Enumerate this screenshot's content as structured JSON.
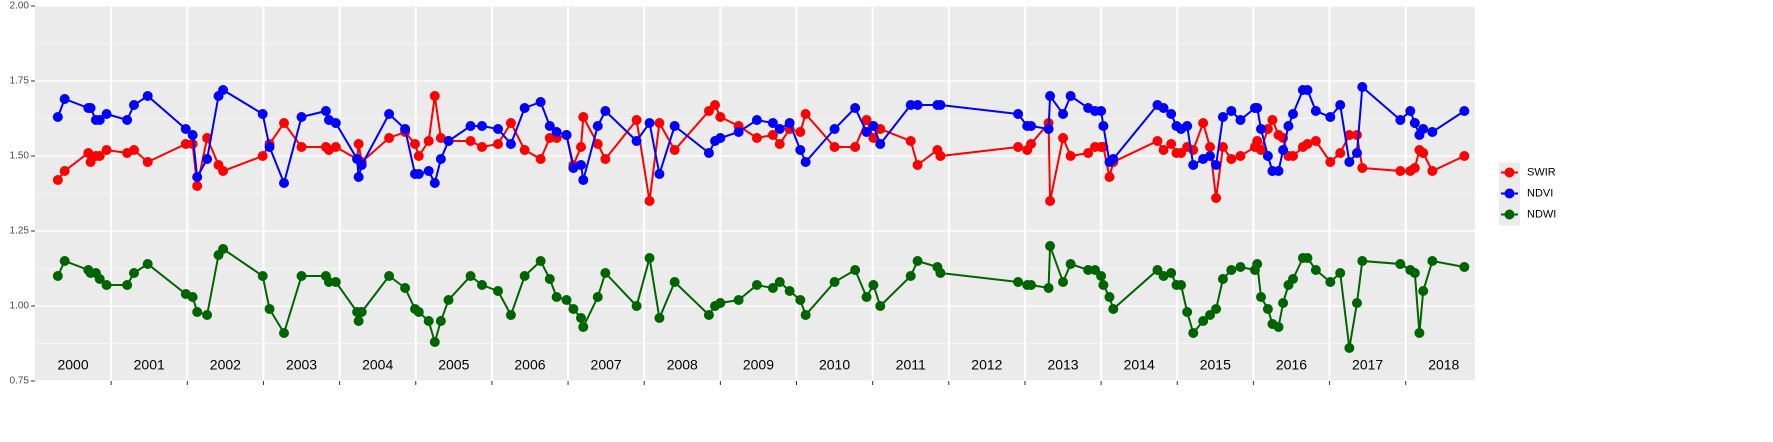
{
  "chart_data": {
    "type": "line",
    "x": [
      2000.3,
      2000.39,
      2000.7,
      2000.73,
      2000.8,
      2000.85,
      2000.94,
      2001.21,
      2001.3,
      2001.48,
      2001.98,
      2002.07,
      2002.13,
      2002.26,
      2002.41,
      2002.47,
      2002.99,
      2003.08,
      2003.27,
      2003.5,
      2003.82,
      2003.86,
      2003.95,
      2004.23,
      2004.25,
      2004.29,
      2004.65,
      2004.86,
      2004.99,
      2005.04,
      2005.17,
      2005.25,
      2005.33,
      2005.43,
      2005.72,
      2005.87,
      2006.08,
      2006.25,
      2006.43,
      2006.64,
      2006.76,
      2006.85,
      2006.98,
      2007.07,
      2007.17,
      2007.2,
      2007.39,
      2007.49,
      2007.9,
      2008.07,
      2008.2,
      2008.4,
      2008.85,
      2008.93,
      2009.0,
      2009.24,
      2009.48,
      2009.69,
      2009.78,
      2009.91,
      2010.05,
      2010.12,
      2010.5,
      2010.77,
      2010.92,
      2011.01,
      2011.1,
      2011.5,
      2011.59,
      2011.85,
      2011.89,
      2012.91,
      2013.03,
      2013.08,
      2013.31,
      2013.33,
      2013.5,
      2013.6,
      2013.83,
      2013.92,
      2014.0,
      2014.03,
      2014.11,
      2014.16,
      2014.74,
      2014.82,
      2014.92,
      2014.99,
      2015.05,
      2015.13,
      2015.21,
      2015.34,
      2015.43,
      2015.51,
      2015.6,
      2015.71,
      2015.83,
      2016.02,
      2016.05,
      2016.1,
      2016.19,
      2016.25,
      2016.33,
      2016.39,
      2016.46,
      2016.52,
      2016.65,
      2016.71,
      2016.82,
      2017.01,
      2017.14,
      2017.26,
      2017.36,
      2017.43,
      2017.93,
      2018.06,
      2018.12,
      2018.18,
      2018.23,
      2018.35,
      2018.77
    ],
    "series": [
      {
        "name": "SWIR",
        "color": "#ff0000",
        "values": [
          1.42,
          1.45,
          1.51,
          1.48,
          1.5,
          1.5,
          1.52,
          1.51,
          1.52,
          1.48,
          1.54,
          1.54,
          1.4,
          1.56,
          1.47,
          1.45,
          1.5,
          1.54,
          1.61,
          1.53,
          1.53,
          1.52,
          1.53,
          1.49,
          1.54,
          1.48,
          1.56,
          1.58,
          1.54,
          1.5,
          1.55,
          1.7,
          1.56,
          1.55,
          1.55,
          1.53,
          1.54,
          1.61,
          1.52,
          1.49,
          1.56,
          1.56,
          1.57,
          1.47,
          1.53,
          1.63,
          1.54,
          1.49,
          1.62,
          1.35,
          1.61,
          1.52,
          1.65,
          1.67,
          1.63,
          1.6,
          1.56,
          1.57,
          1.54,
          1.59,
          1.58,
          1.64,
          1.53,
          1.53,
          1.62,
          1.56,
          1.59,
          1.55,
          1.47,
          1.52,
          1.5,
          1.53,
          1.52,
          1.54,
          1.61,
          1.35,
          1.56,
          1.5,
          1.51,
          1.53,
          1.53,
          1.53,
          1.43,
          1.48,
          1.55,
          1.52,
          1.54,
          1.51,
          1.51,
          1.53,
          1.52,
          1.61,
          1.53,
          1.36,
          1.53,
          1.49,
          1.5,
          1.53,
          1.55,
          1.52,
          1.59,
          1.62,
          1.57,
          1.56,
          1.5,
          1.5,
          1.53,
          1.54,
          1.55,
          1.48,
          1.51,
          1.57,
          1.57,
          1.46,
          1.45,
          1.45,
          1.46,
          1.52,
          1.51,
          1.45,
          1.5
        ]
      },
      {
        "name": "NDVI",
        "color": "#0000ff",
        "values": [
          1.63,
          1.69,
          1.66,
          1.66,
          1.62,
          1.62,
          1.64,
          1.62,
          1.67,
          1.7,
          1.59,
          1.57,
          1.43,
          1.49,
          1.7,
          1.72,
          1.64,
          1.53,
          1.41,
          1.63,
          1.65,
          1.62,
          1.61,
          1.49,
          1.43,
          1.47,
          1.64,
          1.59,
          1.44,
          1.44,
          1.45,
          1.41,
          1.49,
          1.55,
          1.6,
          1.6,
          1.59,
          1.54,
          1.66,
          1.68,
          1.6,
          1.58,
          1.57,
          1.46,
          1.47,
          1.42,
          1.6,
          1.65,
          1.55,
          1.61,
          1.44,
          1.6,
          1.51,
          1.55,
          1.56,
          1.58,
          1.62,
          1.61,
          1.59,
          1.61,
          1.52,
          1.48,
          1.59,
          1.66,
          1.58,
          1.6,
          1.54,
          1.67,
          1.67,
          1.67,
          1.67,
          1.64,
          1.6,
          1.6,
          1.59,
          1.7,
          1.64,
          1.7,
          1.66,
          1.65,
          1.65,
          1.6,
          1.48,
          1.49,
          1.67,
          1.66,
          1.64,
          1.6,
          1.59,
          1.6,
          1.47,
          1.49,
          1.5,
          1.47,
          1.63,
          1.65,
          1.62,
          1.66,
          1.66,
          1.59,
          1.5,
          1.45,
          1.45,
          1.52,
          1.6,
          1.64,
          1.72,
          1.72,
          1.65,
          1.63,
          1.67,
          1.48,
          1.51,
          1.73,
          1.62,
          1.65,
          1.61,
          1.57,
          1.59,
          1.58,
          1.65
        ]
      },
      {
        "name": "NDWI",
        "color": "#006400",
        "values": [
          1.1,
          1.15,
          1.12,
          1.11,
          1.11,
          1.09,
          1.07,
          1.07,
          1.11,
          1.14,
          1.04,
          1.03,
          0.98,
          0.97,
          1.17,
          1.19,
          1.1,
          0.99,
          0.91,
          1.1,
          1.1,
          1.08,
          1.08,
          0.98,
          0.95,
          0.98,
          1.1,
          1.06,
          0.99,
          0.98,
          0.95,
          0.88,
          0.95,
          1.02,
          1.1,
          1.07,
          1.05,
          0.97,
          1.1,
          1.15,
          1.09,
          1.03,
          1.02,
          0.99,
          0.96,
          0.93,
          1.03,
          1.11,
          1.0,
          1.16,
          0.96,
          1.08,
          0.97,
          1.0,
          1.01,
          1.02,
          1.07,
          1.06,
          1.08,
          1.05,
          1.02,
          0.97,
          1.08,
          1.12,
          1.03,
          1.07,
          1.0,
          1.1,
          1.15,
          1.13,
          1.11,
          1.08,
          1.07,
          1.07,
          1.06,
          1.2,
          1.08,
          1.14,
          1.12,
          1.12,
          1.1,
          1.07,
          1.03,
          0.99,
          1.12,
          1.1,
          1.11,
          1.07,
          1.07,
          0.98,
          0.91,
          0.95,
          0.97,
          0.99,
          1.09,
          1.12,
          1.13,
          1.12,
          1.14,
          1.03,
          0.99,
          0.94,
          0.93,
          1.01,
          1.07,
          1.09,
          1.16,
          1.16,
          1.12,
          1.08,
          1.11,
          0.86,
          1.01,
          1.15,
          1.14,
          1.12,
          1.11,
          0.91,
          1.05,
          1.15,
          1.13
        ]
      }
    ],
    "xlim": [
      2000,
      2018.91
    ],
    "ylim": [
      0.75,
      2.0
    ],
    "xticks": [
      2001,
      2002,
      2003,
      2004,
      2005,
      2006,
      2007,
      2008,
      2009,
      2010,
      2011,
      2012,
      2013,
      2014,
      2015,
      2016,
      2017,
      2018
    ],
    "yticks": [
      {
        "value": 0.75,
        "label": "0.75"
      },
      {
        "value": 1.0,
        "label": "1.00"
      },
      {
        "value": 1.25,
        "label": "1.25"
      },
      {
        "value": 1.5,
        "label": "1.50"
      },
      {
        "value": 1.75,
        "label": "1.75"
      },
      {
        "value": 2.0,
        "label": "2.00"
      }
    ],
    "year_labels": [
      {
        "label": "2000",
        "x": 2000.5
      },
      {
        "label": "2001",
        "x": 2001.5
      },
      {
        "label": "2002",
        "x": 2002.5
      },
      {
        "label": "2003",
        "x": 2003.5
      },
      {
        "label": "2004",
        "x": 2004.5
      },
      {
        "label": "2005",
        "x": 2005.5
      },
      {
        "label": "2006",
        "x": 2006.5
      },
      {
        "label": "2007",
        "x": 2007.5
      },
      {
        "label": "2008",
        "x": 2008.5
      },
      {
        "label": "2009",
        "x": 2009.5
      },
      {
        "label": "2010",
        "x": 2010.5
      },
      {
        "label": "2011",
        "x": 2011.5
      },
      {
        "label": "2012",
        "x": 2012.5
      },
      {
        "label": "2013",
        "x": 2013.5
      },
      {
        "label": "2014",
        "x": 2014.5
      },
      {
        "label": "2015",
        "x": 2015.5
      },
      {
        "label": "2016",
        "x": 2016.5
      },
      {
        "label": "2017",
        "x": 2017.5
      },
      {
        "label": "2018",
        "x": 2018.5
      }
    ],
    "grid": true,
    "legend": "right"
  }
}
